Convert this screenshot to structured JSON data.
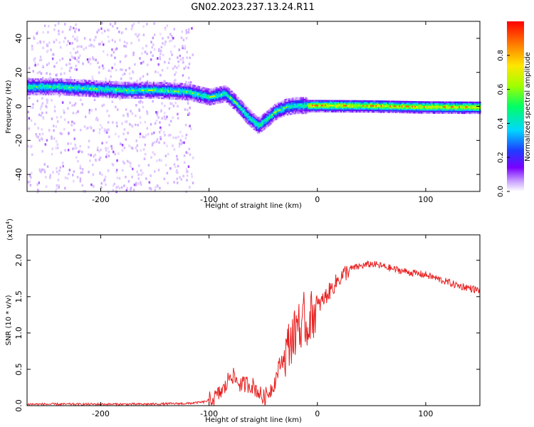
{
  "title": "GN02.2023.237.13.24.R11",
  "chart_data": [
    {
      "type": "heatmap",
      "name": "spectrogram",
      "xlabel": "Height of straight line (km)",
      "ylabel": "Frequency (Hz)",
      "xlim": [
        -268,
        150
      ],
      "ylim": [
        -50,
        50
      ],
      "xticks": [
        -200,
        -100,
        0,
        100
      ],
      "yticks": [
        -40,
        -20,
        0,
        20,
        40
      ],
      "colorbar": {
        "label": "Normalized spectral amplitude",
        "range": [
          0.0,
          1.0
        ],
        "ticks": [
          0.0,
          0.2,
          0.4,
          0.6,
          0.8
        ],
        "colormap": [
          "#ffffff",
          "#c8a0ff",
          "#7a00ff",
          "#1e3cff",
          "#00d7ff",
          "#00ff64",
          "#a0ff00",
          "#ffe600",
          "#ff8000",
          "#ff0000"
        ]
      },
      "ridge": {
        "x": [
          -268,
          -240,
          -210,
          -180,
          -150,
          -120,
          -100,
          -85,
          -75,
          -65,
          -55,
          -45,
          -40,
          -30,
          -20,
          -10,
          0,
          50,
          100,
          150
        ],
        "y": [
          12,
          12,
          11,
          10,
          10,
          9,
          6,
          8,
          2,
          -5,
          -11,
          -6,
          -3,
          0,
          1,
          1,
          1,
          0.8,
          0.2,
          0
        ]
      }
    },
    {
      "type": "line",
      "name": "snr",
      "xlabel": "Height of straight line (km)",
      "ylabel": "SNR (10 * v/v)",
      "ylabel_scale": "(x10",
      "ylabel_scale_exp": "4",
      "ylabel_scale_close": ")",
      "xlim": [
        -268,
        150
      ],
      "ylim": [
        0.0,
        2.35
      ],
      "xticks": [
        -200,
        -100,
        0,
        100
      ],
      "yticks": [
        0.0,
        0.5,
        1.0,
        1.5,
        2.0
      ],
      "series": [
        {
          "color": "#e82020",
          "x": [
            -268,
            -240,
            -200,
            -160,
            -120,
            -105,
            -95,
            -85,
            -80,
            -75,
            -70,
            -65,
            -60,
            -55,
            -50,
            -45,
            -40,
            -35,
            -30,
            -25,
            -20,
            -17,
            -15,
            -12,
            -10,
            -8,
            -5,
            0,
            10,
            20,
            30,
            40,
            50,
            60,
            70,
            80,
            90,
            100,
            110,
            120,
            130,
            140,
            150
          ],
          "y": [
            0.02,
            0.02,
            0.02,
            0.02,
            0.03,
            0.05,
            0.1,
            0.25,
            0.45,
            0.35,
            0.28,
            0.3,
            0.28,
            0.2,
            0.1,
            0.18,
            0.3,
            0.55,
            0.7,
            0.9,
            1.0,
            1.3,
            0.8,
            1.3,
            1.0,
            1.2,
            1.25,
            1.35,
            1.55,
            1.75,
            1.88,
            1.92,
            1.95,
            1.92,
            1.88,
            1.85,
            1.82,
            1.8,
            1.75,
            1.7,
            1.65,
            1.62,
            1.58
          ]
        }
      ]
    }
  ]
}
